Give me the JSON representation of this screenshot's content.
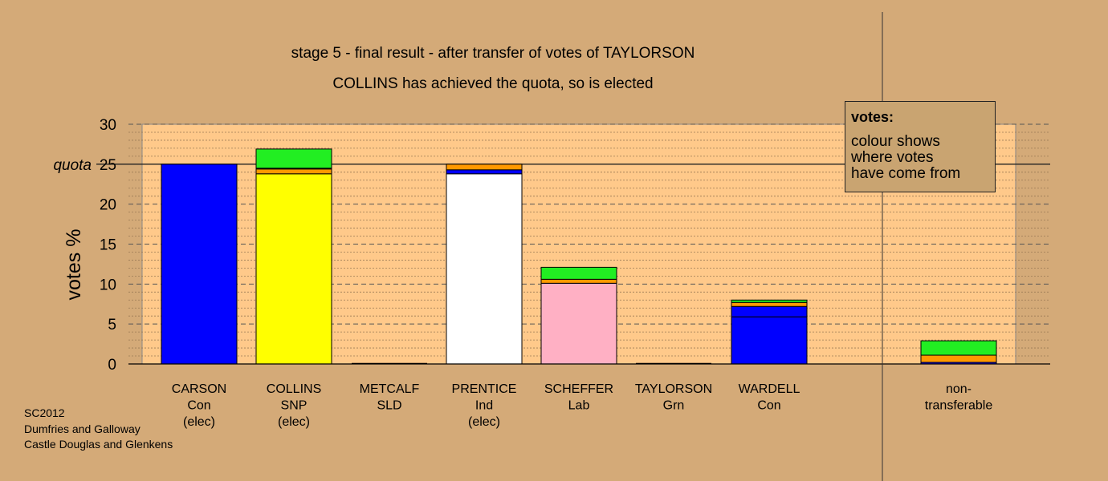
{
  "chart_data": {
    "type": "bar",
    "stacked": true,
    "title": "stage 5 - final result - after transfer of votes of TAYLORSON",
    "subtitle": "COLLINS has achieved the quota, so is elected",
    "ylabel": "votes %",
    "ylim": [
      0,
      30
    ],
    "yticks": [
      "0",
      "5",
      "10",
      "15",
      "20",
      "25",
      "30"
    ],
    "quota": 25,
    "quota_label": "quota",
    "grid": true,
    "colors": {
      "background": "#d4aa78",
      "plot_area": "#ffc98a",
      "Con": "#0000ff",
      "SNP": "#ffff00",
      "Ind": "#ffffff",
      "Lab": "#ffb0c4",
      "SLD": "#ff9900",
      "Grn": "#22ee22"
    },
    "candidates": [
      {
        "name": "CARSON",
        "party": "Con",
        "status": "(elec)",
        "segments": [
          {
            "source": "Con",
            "value": 25.0
          }
        ]
      },
      {
        "name": "COLLINS",
        "party": "SNP",
        "status": "(elec)",
        "segments": [
          {
            "source": "SNP",
            "value": 23.8
          },
          {
            "source": "SLD",
            "value": 0.6
          },
          {
            "source": "Ind",
            "value": 0.1
          },
          {
            "source": "Grn",
            "value": 2.4
          }
        ]
      },
      {
        "name": "METCALF",
        "party": "SLD",
        "status": "",
        "segments": []
      },
      {
        "name": "PRENTICE",
        "party": "Ind",
        "status": "(elec)",
        "segments": [
          {
            "source": "Ind",
            "value": 23.8
          },
          {
            "source": "Con",
            "value": 0.5
          },
          {
            "source": "SLD",
            "value": 0.7
          }
        ]
      },
      {
        "name": "SCHEFFER",
        "party": "Lab",
        "status": "",
        "segments": [
          {
            "source": "Lab",
            "value": 10.1
          },
          {
            "source": "SLD",
            "value": 0.5
          },
          {
            "source": "Grn",
            "value": 1.5
          }
        ]
      },
      {
        "name": "TAYLORSON",
        "party": "Grn",
        "status": "",
        "segments": []
      },
      {
        "name": "WARDELL",
        "party": "Con",
        "status": "",
        "segments": [
          {
            "source": "Con",
            "value": 5.9
          },
          {
            "source": "Con",
            "value": 1.3
          },
          {
            "source": "SLD",
            "value": 0.5
          },
          {
            "source": "Grn",
            "value": 0.3
          }
        ]
      }
    ],
    "non_transferable": {
      "label_line1": "non-",
      "label_line2": "transferable",
      "segments": [
        {
          "source": "Con",
          "value": 0.2
        },
        {
          "source": "SLD",
          "value": 0.9
        },
        {
          "source": "Grn",
          "value": 1.8
        }
      ]
    },
    "legend": {
      "title": "votes:",
      "lines": [
        "colour shows",
        "where votes",
        "have come from"
      ]
    }
  },
  "source": {
    "line1": "SC2012",
    "line2": "Dumfries and Galloway",
    "line3": "Castle Douglas and Glenkens"
  }
}
